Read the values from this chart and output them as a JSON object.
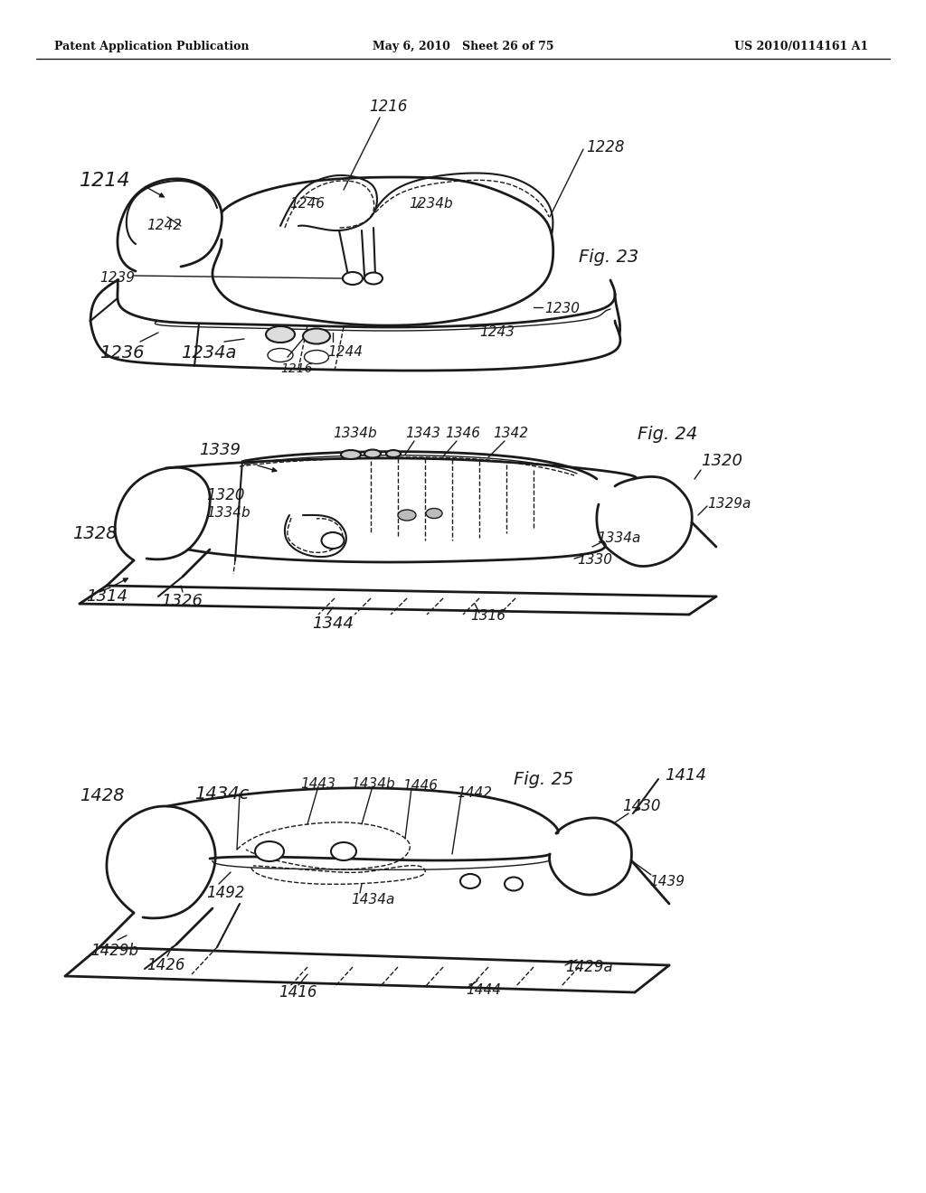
{
  "header_left": "Patent Application Publication",
  "header_center": "May 6, 2010   Sheet 26 of 75",
  "header_right": "US 2010/0114161 A1",
  "background_color": "#f5f5f0",
  "line_color": "#1a1a1a",
  "fig23_label": "Fig. 23",
  "fig24_label": "Fig. 24",
  "fig25_label": "Fig. 25"
}
